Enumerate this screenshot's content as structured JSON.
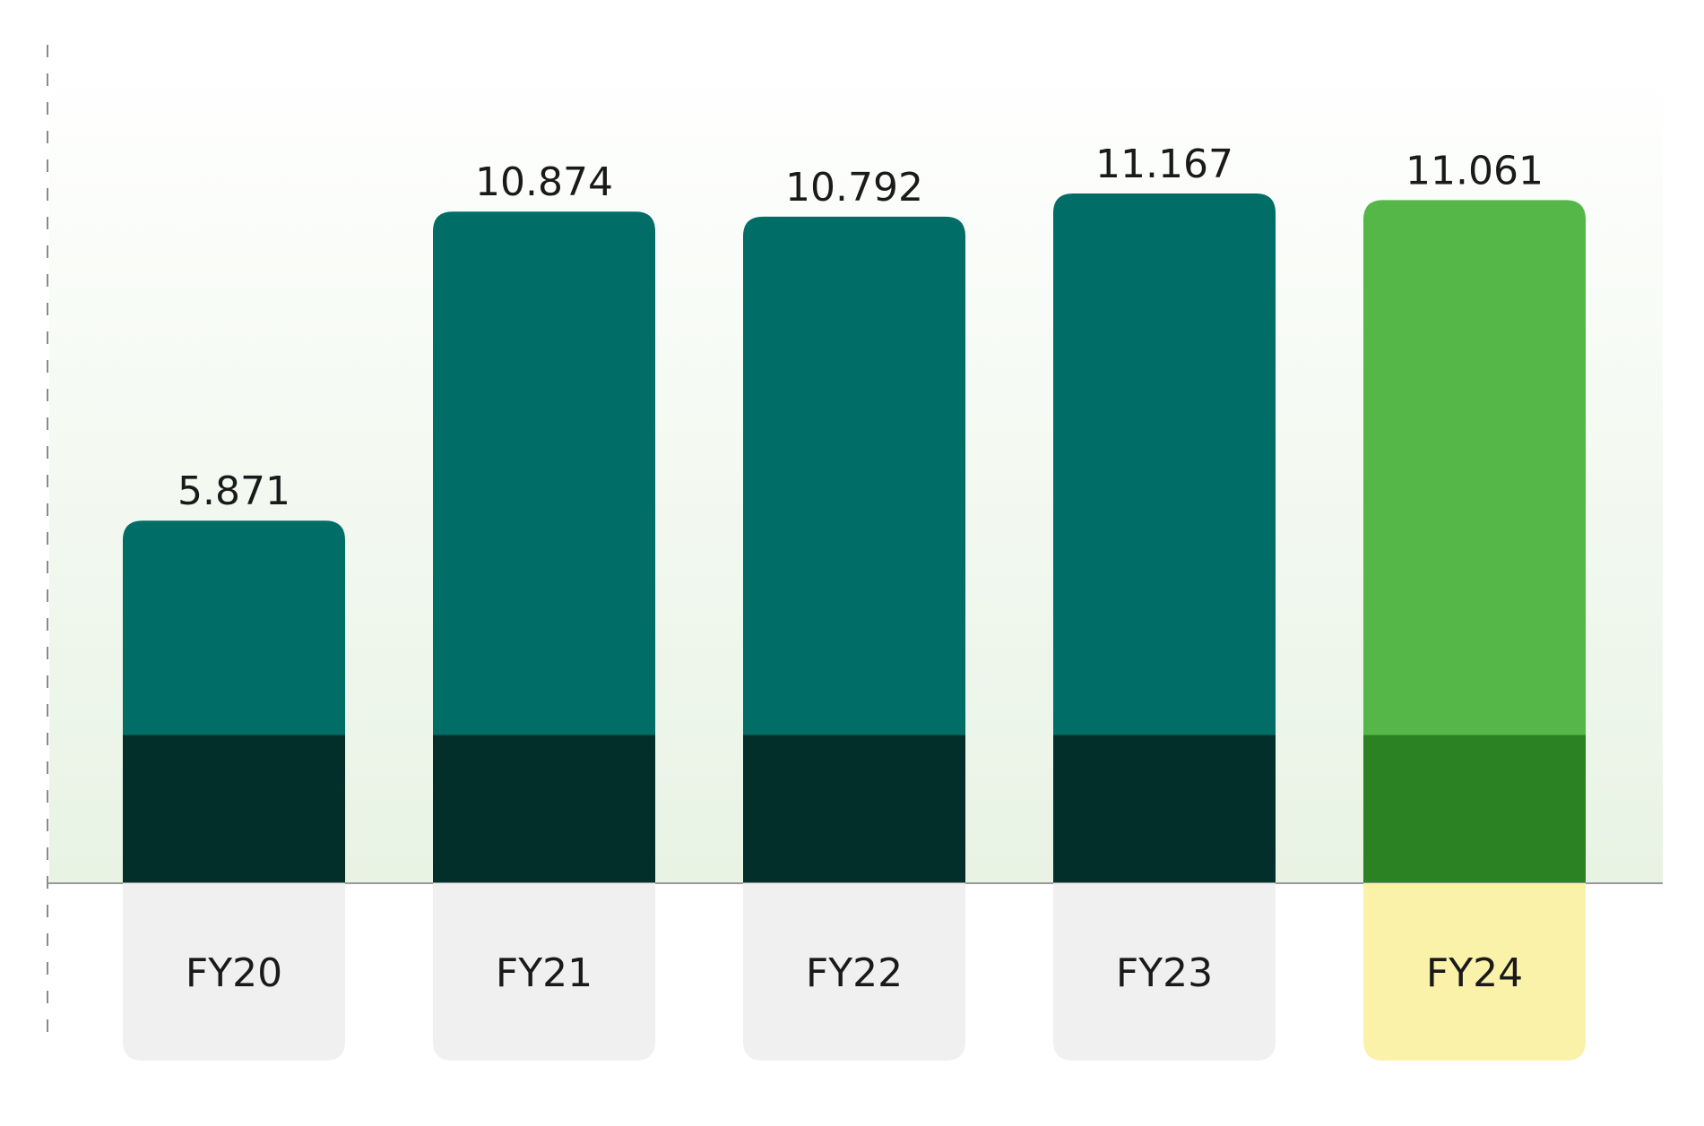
{
  "chart_data": {
    "type": "bar",
    "stacked": true,
    "categories": [
      "FY20",
      "FY21",
      "FY22",
      "FY23",
      "FY24"
    ],
    "totals": [
      5.871,
      10.874,
      10.792,
      11.167,
      11.061
    ],
    "total_labels": [
      "5.871",
      "10.874",
      "10.792",
      "11.167",
      "11.061"
    ],
    "series": [
      {
        "values": [
          2.4,
          2.4,
          2.4,
          2.4,
          2.4
        ]
      },
      {
        "values": [
          3.471,
          8.474,
          8.392,
          8.767,
          8.661
        ]
      }
    ],
    "highlight_category": "FY24",
    "ylim": [
      0,
      14.3
    ],
    "title": "",
    "xlabel": "",
    "ylabel": "",
    "grid": false,
    "colors": {
      "upper": "#006e66",
      "lower": "#022f29",
      "upper_highlight": "#55b748",
      "lower_highlight": "#2a8222",
      "label_bg": "#f0f0f0",
      "label_bg_highlight": "#fbf2aa",
      "text": "#1a1a1a",
      "plot_bg_top": "#ffffff",
      "plot_bg_bottom": "#e8f3e4",
      "baseline": "#999999",
      "axis_dash": "#8a8a8a"
    }
  }
}
